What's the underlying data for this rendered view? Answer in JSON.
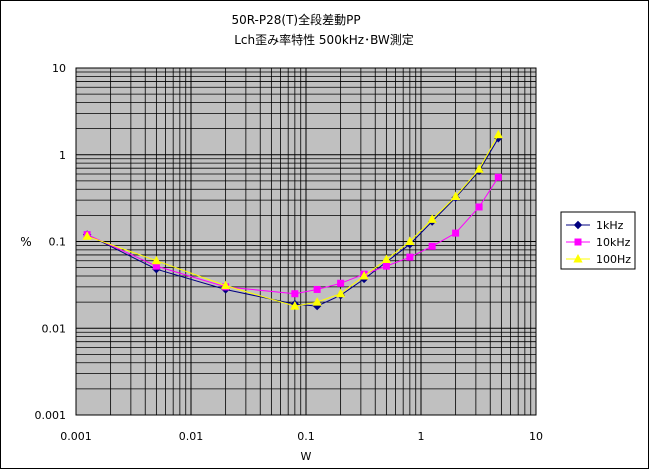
{
  "chart_data": {
    "type": "line",
    "title": "50R-P28(T)全段差動PP",
    "subtitle": "Lch歪み率特性  500kHz･BW測定",
    "xlabel": "W",
    "ylabel": "%",
    "x_scale": "log",
    "y_scale": "log",
    "xlim": [
      0.001,
      10
    ],
    "ylim": [
      0.001,
      10
    ],
    "x_ticks": [
      "0.001",
      "0.01",
      "0.1",
      "1",
      "10"
    ],
    "y_ticks": [
      "10",
      "1",
      "0.1",
      "0.01",
      "0.001"
    ],
    "grid": true,
    "legend_position": "right",
    "series": [
      {
        "name": "1kHz",
        "color": "#000080",
        "marker": "diamond",
        "x": [
          0.00125,
          0.005,
          0.02,
          0.08,
          0.125,
          0.2,
          0.32,
          0.5,
          0.8,
          1.25,
          2.0,
          3.2,
          4.7
        ],
        "y": [
          0.12,
          0.048,
          0.028,
          0.019,
          0.018,
          0.024,
          0.037,
          0.058,
          0.093,
          0.17,
          0.32,
          0.65,
          1.55
        ]
      },
      {
        "name": "10kHz",
        "color": "#ff00ff",
        "marker": "square",
        "x": [
          0.00125,
          0.005,
          0.02,
          0.08,
          0.125,
          0.2,
          0.32,
          0.5,
          0.8,
          1.25,
          2.0,
          3.2,
          4.7
        ],
        "y": [
          0.12,
          0.052,
          0.03,
          0.025,
          0.028,
          0.033,
          0.042,
          0.052,
          0.066,
          0.088,
          0.125,
          0.25,
          0.55
        ]
      },
      {
        "name": "100Hz",
        "color": "#ffff00",
        "marker": "triangle",
        "x": [
          0.00125,
          0.005,
          0.02,
          0.08,
          0.125,
          0.2,
          0.32,
          0.5,
          0.8,
          1.25,
          2.0,
          3.2,
          4.7
        ],
        "y": [
          0.115,
          0.06,
          0.031,
          0.018,
          0.02,
          0.025,
          0.04,
          0.062,
          0.1,
          0.18,
          0.33,
          0.68,
          1.7
        ]
      }
    ]
  }
}
